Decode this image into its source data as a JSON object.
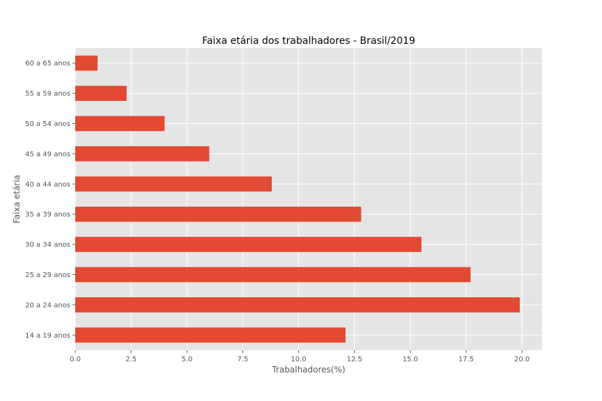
{
  "chart_data": {
    "type": "bar",
    "orientation": "horizontal",
    "title": "Faixa etária dos trabalhadores - Brasil/2019",
    "xlabel": "Trabalhadores(%)",
    "ylabel": "Faixa etária",
    "categories": [
      "14 a 19 anos",
      "20 a 24 anos",
      "25 a 29 anos",
      "30 a 34 anos",
      "35 a 39 anos",
      "40 a 44 anos",
      "45 a 49 anos",
      "50 a 54 anos",
      "55 a 59 anos",
      "60 a 65 anos"
    ],
    "values": [
      12.1,
      19.9,
      17.7,
      15.5,
      12.8,
      8.8,
      6.0,
      4.0,
      2.3,
      1.0
    ],
    "xlim": [
      0,
      20.9
    ],
    "xticks": [
      "0.0",
      "2.5",
      "5.0",
      "7.5",
      "10.0",
      "12.5",
      "15.0",
      "17.5",
      "20.0"
    ],
    "grid": true,
    "colors": {
      "bar": "#E24A33",
      "plot_background": "#E5E5E5",
      "grid": "#FFFFFF",
      "text": "#555555"
    }
  }
}
